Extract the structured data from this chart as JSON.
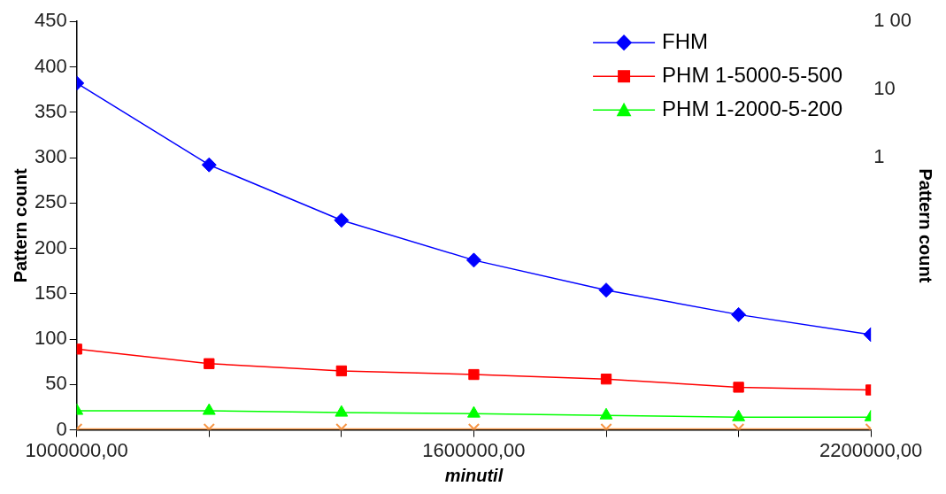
{
  "chart_data": {
    "type": "line",
    "xlabel": "minutil",
    "ylabel": "Pattern count",
    "y2label": "Pattern count",
    "x": [
      1000000,
      1200000,
      1400000,
      1600000,
      1800000,
      2000000,
      2200000
    ],
    "xlim": [
      1000000,
      2200000
    ],
    "xticks": [
      {
        "value": 1000000,
        "label": "1000000,00"
      },
      {
        "value": 1200000,
        "label": null
      },
      {
        "value": 1400000,
        "label": null
      },
      {
        "value": 1600000,
        "label": "1600000,00"
      },
      {
        "value": 1800000,
        "label": null
      },
      {
        "value": 2000000,
        "label": null
      },
      {
        "value": 2200000,
        "label": "2200000,00"
      }
    ],
    "ylim": [
      0,
      450
    ],
    "yticks": [
      0,
      50,
      100,
      150,
      200,
      250,
      300,
      350,
      400,
      450
    ],
    "y2lim": [
      0.0001,
      100
    ],
    "y2ticks": [
      {
        "value": 100,
        "label": "1 00"
      },
      10,
      1
    ],
    "log": "y2",
    "grid": false,
    "legend": "top right",
    "series": [
      {
        "name": "FHM",
        "color": "#0000ff",
        "marker": "diamond",
        "values": [
          382,
          292,
          231,
          187,
          154,
          127,
          105
        ]
      },
      {
        "name": "PHM 1-5000-5-500",
        "color": "#ff0000",
        "marker": "square",
        "values": [
          89,
          73,
          65,
          61,
          56,
          47,
          44
        ]
      },
      {
        "name": "PHM 1-2000-5-200",
        "color": "#00ff00",
        "marker": "triangle",
        "values": [
          21,
          21,
          19,
          18,
          16,
          14,
          14
        ]
      },
      {
        "color": "#f79646",
        "marker": "cross",
        "values": [
          1,
          1,
          1,
          1,
          1,
          1,
          1
        ]
      }
    ]
  }
}
